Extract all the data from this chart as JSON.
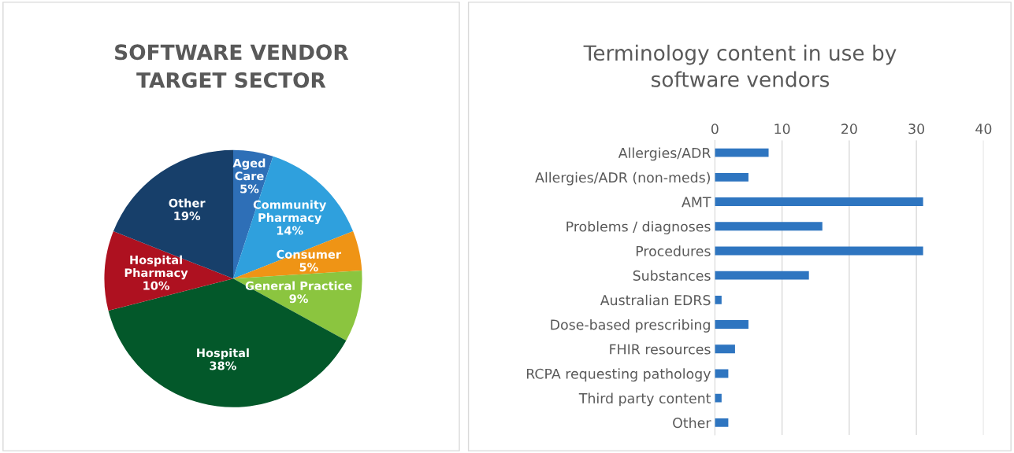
{
  "chart_data": [
    {
      "type": "pie",
      "title": "SOFTWARE VENDOR\nTARGET SECTOR",
      "categories": [
        "Aged\nCare",
        "Community\nPharmacy",
        "Consumer",
        "General Practice",
        "Hospital",
        "Hospital\nPharmacy",
        "Other"
      ],
      "values": [
        5,
        14,
        5,
        9,
        38,
        10,
        19
      ],
      "colors": [
        "#2e6fb7",
        "#2fa0dd",
        "#ef9415",
        "#8bc53f",
        "#03582a",
        "#ae1120",
        "#173f6a"
      ],
      "value_labels": [
        "5%",
        "14%",
        "5%",
        "9%",
        "38%",
        "10%",
        "19%"
      ],
      "legend": false
    },
    {
      "type": "bar",
      "orientation": "horizontal",
      "title": "Terminology content in use by\nsoftware vendors",
      "categories": [
        "Allergies/ADR",
        "Allergies/ADR (non-meds)",
        "AMT",
        "Problems / diagnoses",
        "Procedures",
        "Substances",
        "Australian EDRS",
        "Dose-based prescribing",
        "FHIR resources",
        "RCPA requesting pathology",
        "Third party content",
        "Other"
      ],
      "values": [
        8,
        5,
        31,
        16,
        31,
        14,
        1,
        5,
        3,
        2,
        1,
        2
      ],
      "color": "#2e75c0",
      "xlim": [
        0,
        40
      ],
      "xticks": [
        0,
        10,
        20,
        30,
        40
      ],
      "grid": "x",
      "legend": false
    }
  ]
}
